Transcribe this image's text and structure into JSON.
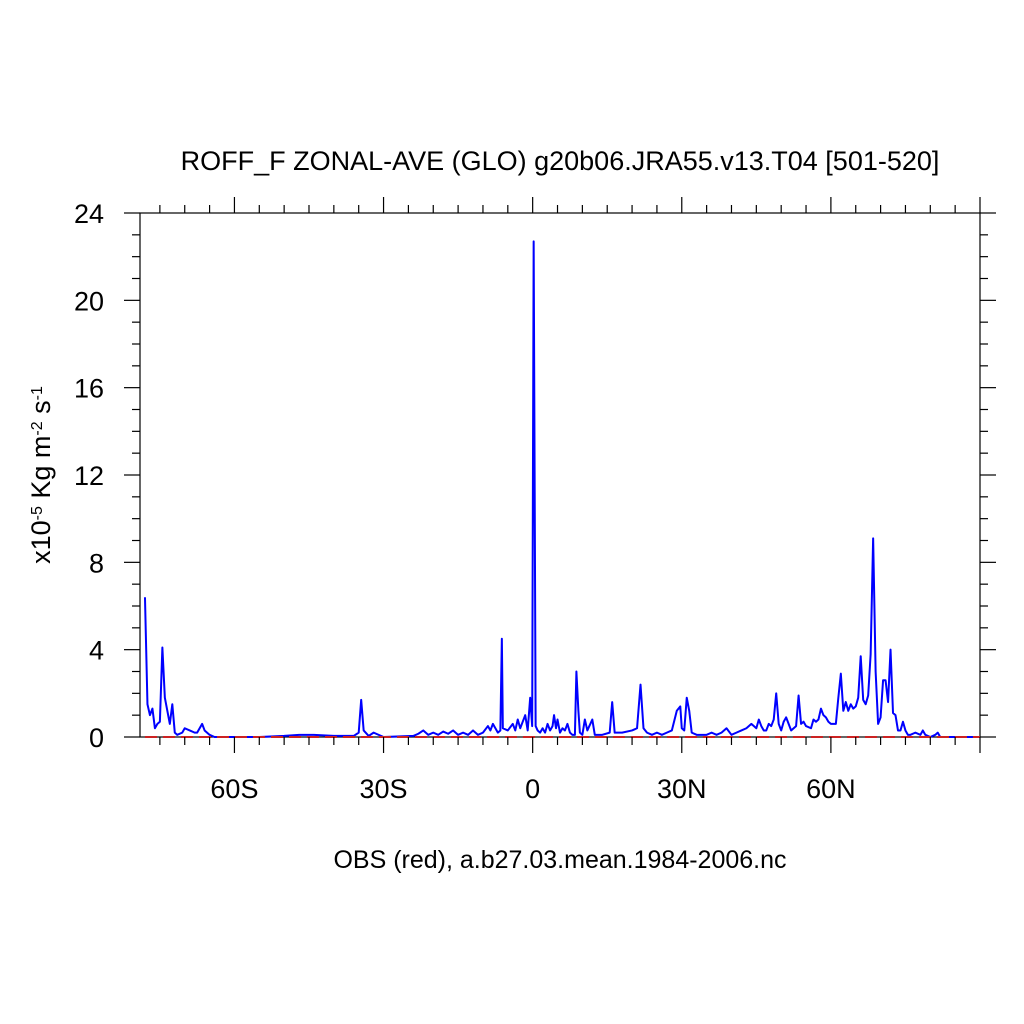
{
  "chart_data": {
    "type": "line",
    "title": "ROFF_F ZONAL-AVE (GLO) g20b06.JRA55.v13.T04 [501-520]",
    "xlabel": "OBS (red), a.b27.03.mean.1984-2006.nc",
    "ylabel": {
      "base": "x10",
      "base_exp": "-5",
      "unit1": " Kg m",
      "unit1_exp": "-2",
      "unit2": " s",
      "unit2_exp": "-1"
    },
    "xlim": [
      -79,
      90
    ],
    "ylim": [
      0,
      24
    ],
    "x_ticks": [
      {
        "value": -60,
        "label": "60S"
      },
      {
        "value": -30,
        "label": "30S"
      },
      {
        "value": 0,
        "label": "0"
      },
      {
        "value": 30,
        "label": "30N"
      },
      {
        "value": 60,
        "label": "60N"
      }
    ],
    "y_ticks": [
      {
        "value": 0,
        "label": "0"
      },
      {
        "value": 4,
        "label": "4"
      },
      {
        "value": 8,
        "label": "8"
      },
      {
        "value": 12,
        "label": "12"
      },
      {
        "value": 16,
        "label": "16"
      },
      {
        "value": 20,
        "label": "20"
      },
      {
        "value": 24,
        "label": "24"
      }
    ],
    "series": [
      {
        "color": "#0000ff",
        "points": [
          [
            -78,
            6.4
          ],
          [
            -77.5,
            1.5
          ],
          [
            -77,
            1.0
          ],
          [
            -76.5,
            1.3
          ],
          [
            -76,
            0.4
          ],
          [
            -75.5,
            0.6
          ],
          [
            -75,
            0.7
          ],
          [
            -74.5,
            4.1
          ],
          [
            -74,
            1.8
          ],
          [
            -73.5,
            1.2
          ],
          [
            -73,
            0.6
          ],
          [
            -72.5,
            1.5
          ],
          [
            -72,
            0.2
          ],
          [
            -71.5,
            0.1
          ],
          [
            -70.5,
            0.2
          ],
          [
            -70,
            0.4
          ],
          [
            -69,
            0.3
          ],
          [
            -68,
            0.2
          ],
          [
            -67.5,
            0.2
          ],
          [
            -66.5,
            0.6
          ],
          [
            -66,
            0.3
          ],
          [
            -65,
            0.1
          ],
          [
            -64,
            0.0
          ],
          [
            -55,
            0.0
          ],
          [
            -50,
            0.05
          ],
          [
            -47,
            0.1
          ],
          [
            -44,
            0.1
          ],
          [
            -40,
            0.05
          ],
          [
            -36,
            0.05
          ],
          [
            -35,
            0.2
          ],
          [
            -34.5,
            1.7
          ],
          [
            -34,
            0.3
          ],
          [
            -33,
            0.05
          ],
          [
            -32,
            0.2
          ],
          [
            -30,
            0.0
          ],
          [
            -24,
            0.05
          ],
          [
            -23,
            0.15
          ],
          [
            -22,
            0.3
          ],
          [
            -21,
            0.1
          ],
          [
            -20,
            0.2
          ],
          [
            -19,
            0.1
          ],
          [
            -18,
            0.25
          ],
          [
            -17,
            0.15
          ],
          [
            -16,
            0.3
          ],
          [
            -15,
            0.1
          ],
          [
            -14,
            0.2
          ],
          [
            -13,
            0.1
          ],
          [
            -12,
            0.3
          ],
          [
            -11,
            0.1
          ],
          [
            -10,
            0.2
          ],
          [
            -9,
            0.5
          ],
          [
            -8.5,
            0.3
          ],
          [
            -8,
            0.6
          ],
          [
            -7,
            0.2
          ],
          [
            -6.5,
            0.3
          ],
          [
            -6.2,
            4.5
          ],
          [
            -6,
            0.4
          ],
          [
            -5,
            0.3
          ],
          [
            -4,
            0.6
          ],
          [
            -3.5,
            0.3
          ],
          [
            -3,
            0.8
          ],
          [
            -2.5,
            0.4
          ],
          [
            -1.5,
            1.0
          ],
          [
            -1,
            0.3
          ],
          [
            -0.5,
            1.8
          ],
          [
            -0.1,
            0.5
          ],
          [
            0.2,
            22.7
          ],
          [
            0.6,
            0.5
          ],
          [
            1,
            0.3
          ],
          [
            1.5,
            0.2
          ],
          [
            2,
            0.4
          ],
          [
            2.5,
            0.2
          ],
          [
            3,
            0.6
          ],
          [
            3.5,
            0.3
          ],
          [
            4,
            0.5
          ],
          [
            4.3,
            1.0
          ],
          [
            4.7,
            0.4
          ],
          [
            5,
            0.8
          ],
          [
            5.5,
            0.2
          ],
          [
            6,
            0.4
          ],
          [
            6.5,
            0.3
          ],
          [
            7,
            0.6
          ],
          [
            7.5,
            0.2
          ],
          [
            8,
            0.1
          ],
          [
            8.5,
            0.1
          ],
          [
            8.8,
            3.0
          ],
          [
            9.2,
            1.2
          ],
          [
            9.5,
            0.2
          ],
          [
            10,
            0.1
          ],
          [
            10.5,
            0.8
          ],
          [
            11,
            0.3
          ],
          [
            12,
            0.8
          ],
          [
            12.5,
            0.1
          ],
          [
            14,
            0.1
          ],
          [
            15.5,
            0.2
          ],
          [
            16,
            1.6
          ],
          [
            16.5,
            0.2
          ],
          [
            18,
            0.2
          ],
          [
            20,
            0.3
          ],
          [
            21,
            0.4
          ],
          [
            21.7,
            2.4
          ],
          [
            22.3,
            0.4
          ],
          [
            23,
            0.2
          ],
          [
            24,
            0.1
          ],
          [
            25,
            0.2
          ],
          [
            26,
            0.1
          ],
          [
            27,
            0.2
          ],
          [
            28,
            0.3
          ],
          [
            29,
            1.2
          ],
          [
            29.7,
            1.4
          ],
          [
            30,
            0.4
          ],
          [
            30.5,
            0.3
          ],
          [
            31,
            1.8
          ],
          [
            31.5,
            1.2
          ],
          [
            32,
            0.2
          ],
          [
            33,
            0.1
          ],
          [
            35,
            0.1
          ],
          [
            36,
            0.2
          ],
          [
            37,
            0.1
          ],
          [
            38,
            0.2
          ],
          [
            39,
            0.4
          ],
          [
            40,
            0.1
          ],
          [
            41,
            0.2
          ],
          [
            42,
            0.3
          ],
          [
            43,
            0.4
          ],
          [
            44,
            0.6
          ],
          [
            45,
            0.4
          ],
          [
            45.5,
            0.8
          ],
          [
            46,
            0.5
          ],
          [
            46.5,
            0.3
          ],
          [
            47,
            0.3
          ],
          [
            47.5,
            0.6
          ],
          [
            48,
            0.5
          ],
          [
            48.5,
            0.8
          ],
          [
            49,
            2.0
          ],
          [
            49.5,
            0.6
          ],
          [
            50,
            0.3
          ],
          [
            50.5,
            0.7
          ],
          [
            51,
            0.9
          ],
          [
            51.5,
            0.6
          ],
          [
            52,
            0.3
          ],
          [
            53,
            0.5
          ],
          [
            53.5,
            1.9
          ],
          [
            54,
            0.6
          ],
          [
            54.5,
            0.7
          ],
          [
            55,
            0.5
          ],
          [
            56,
            0.4
          ],
          [
            56.5,
            0.8
          ],
          [
            57,
            0.7
          ],
          [
            57.5,
            0.8
          ],
          [
            58,
            1.3
          ],
          [
            58.5,
            1.0
          ],
          [
            59,
            0.9
          ],
          [
            59.5,
            0.7
          ],
          [
            60,
            0.6
          ],
          [
            61,
            0.6
          ],
          [
            61.5,
            1.8
          ],
          [
            62,
            2.9
          ],
          [
            62.5,
            1.2
          ],
          [
            63,
            1.6
          ],
          [
            63.5,
            1.2
          ],
          [
            64,
            1.5
          ],
          [
            64.5,
            1.3
          ],
          [
            65,
            1.4
          ],
          [
            65.5,
            1.8
          ],
          [
            66,
            3.7
          ],
          [
            66.5,
            1.7
          ],
          [
            67,
            1.5
          ],
          [
            67.5,
            1.9
          ],
          [
            68,
            3.8
          ],
          [
            68.5,
            9.1
          ],
          [
            69,
            3.0
          ],
          [
            69.5,
            0.6
          ],
          [
            70,
            0.9
          ],
          [
            70.5,
            2.6
          ],
          [
            71,
            2.6
          ],
          [
            71.5,
            1.6
          ],
          [
            72,
            4.0
          ],
          [
            72.5,
            1.1
          ],
          [
            73,
            1.0
          ],
          [
            73.5,
            0.3
          ],
          [
            74,
            0.3
          ],
          [
            74.5,
            0.7
          ],
          [
            75,
            0.3
          ],
          [
            75.5,
            0.1
          ],
          [
            76,
            0.1
          ],
          [
            77,
            0.2
          ],
          [
            78,
            0.1
          ],
          [
            78.5,
            0.3
          ],
          [
            79,
            0.1
          ],
          [
            80,
            0.0
          ],
          [
            81,
            0.1
          ],
          [
            81.5,
            0.2
          ],
          [
            82,
            0.0
          ],
          [
            90,
            0.0
          ]
        ]
      },
      {
        "color": "#cc2222",
        "dashed": true,
        "points": [
          [
            -78,
            0.0
          ],
          [
            90,
            0.0
          ]
        ]
      }
    ],
    "grid": false,
    "legend": "none"
  }
}
